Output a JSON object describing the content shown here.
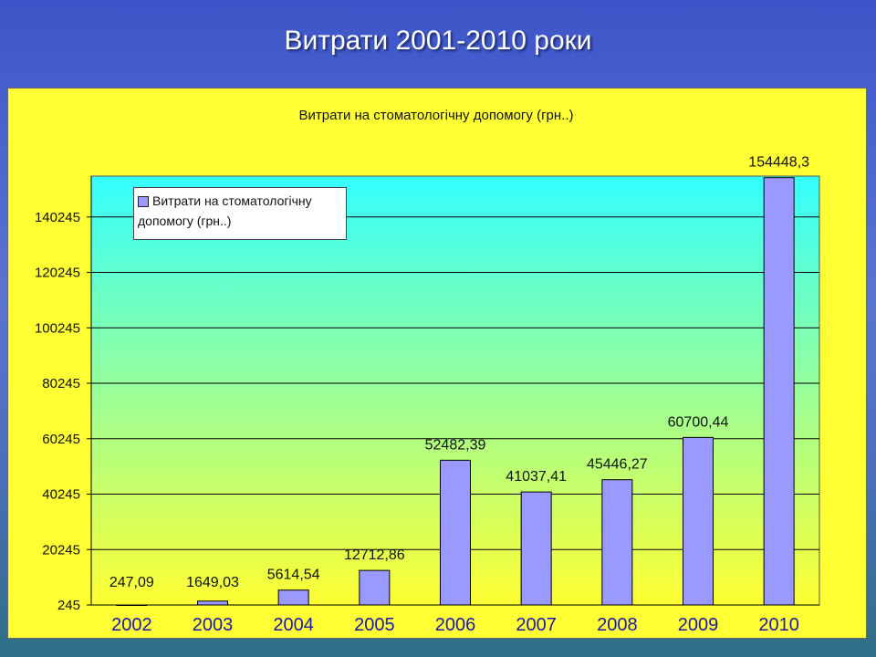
{
  "slide": {
    "title": "Витрати 2001-2010 роки"
  },
  "chart_data": {
    "type": "bar",
    "title": "Витрати на стоматологічну допомогу (грн..)",
    "categories": [
      "2002",
      "2003",
      "2004",
      "2005",
      "2006",
      "2007",
      "2008",
      "2009",
      "2010"
    ],
    "series": [
      {
        "name": "Витрати на стоматологічну допомогу (грн..)",
        "values": [
          247.09,
          1649.03,
          5614.54,
          12712.86,
          52482.39,
          41037.41,
          45446.27,
          60700.44,
          154448.3
        ],
        "labels": [
          "247,09",
          "1649,03",
          "5614,54",
          "12712,86",
          "52482,39",
          "41037,41",
          "45446,27",
          "60700,44",
          "154448,3"
        ]
      }
    ],
    "yticks": [
      "245",
      "20245",
      "40245",
      "60245",
      "80245",
      "100245",
      "120245",
      "140245"
    ],
    "ylim": [
      245,
      155000
    ],
    "grid": true,
    "legend": "top-left",
    "colors": {
      "bar": "#9999ff",
      "plot_top": "#33ffff",
      "plot_bottom": "#ffff33",
      "frame": "#ffff33",
      "xtick": "#1a1aaa"
    }
  }
}
